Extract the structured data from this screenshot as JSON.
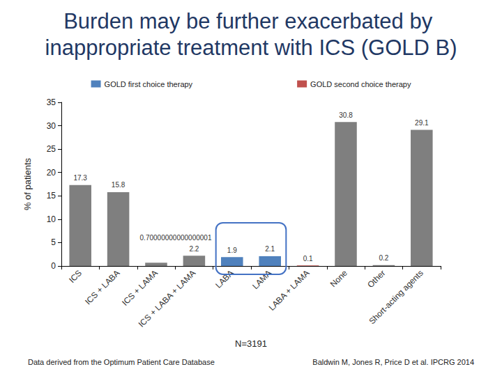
{
  "chart_data": {
    "type": "bar",
    "title": "Burden may be further exacerbated by inappropriate treatment with ICS (GOLD B)",
    "xlabel": "N=3191",
    "ylabel": "% of patients",
    "categories": [
      "ICS",
      "ICS + LABA",
      "ICS + LAMA",
      "ICS + LABA + LAMA",
      "LABA",
      "LAMA",
      "LABA + LAMA",
      "None",
      "Other",
      "Short-acting agents"
    ],
    "series": [
      {
        "name": "GOLD first choice therapy",
        "color": "#4f81bd",
        "values": [
          null,
          null,
          null,
          null,
          1.9,
          2.1,
          null,
          null,
          null,
          null
        ]
      },
      {
        "name": "GOLD second choice therapy",
        "color": "#c0504d",
        "values": [
          null,
          null,
          null,
          null,
          null,
          null,
          0.1,
          null,
          null,
          null
        ]
      },
      {
        "color": "#7f7f7f",
        "values": [
          17.3,
          15.8,
          0.7,
          2.2,
          null,
          null,
          null,
          30.8,
          0.2,
          29.1
        ],
        "value_labels": [
          "17.3",
          "15.8",
          "0.70000000000000001",
          "2.2",
          null,
          null,
          null,
          "30.8",
          "0.2",
          "29.1"
        ]
      }
    ],
    "ylim": [
      0,
      35
    ],
    "yticks": [
      0,
      5,
      10,
      15,
      20,
      25,
      30,
      35
    ],
    "grid": false,
    "legend": "top",
    "data_labels": true,
    "annotations": [
      "Data derived from the Optimum Patient Care Database",
      "Baldwin M, Jones R, Price D et al. IPCRG 2014"
    ]
  }
}
